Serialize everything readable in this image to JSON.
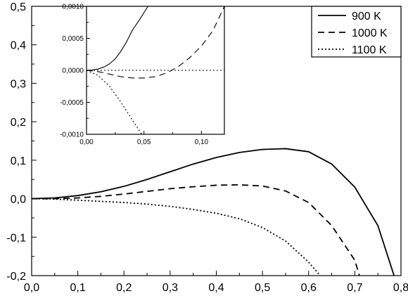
{
  "chart_data": [
    {
      "type": "line",
      "title": "",
      "xlabel": "",
      "ylabel": "",
      "xlim": [
        0.0,
        0.8
      ],
      "ylim": [
        -0.2,
        0.5
      ],
      "xticks": [
        "0,0",
        "0,1",
        "0,2",
        "0,3",
        "0,4",
        "0,5",
        "0,6",
        "0,7",
        "0,8"
      ],
      "yticks": [
        "0,5",
        "0,4",
        "0,3",
        "0,2",
        "0,1",
        "0,0",
        "-0,1",
        "-0,2"
      ],
      "grid": false,
      "legend_position": "top-right",
      "series": [
        {
          "name": "900 K",
          "style": "solid",
          "x": [
            0,
            0.05,
            0.1,
            0.15,
            0.2,
            0.25,
            0.3,
            0.35,
            0.4,
            0.45,
            0.5,
            0.55,
            0.6,
            0.65,
            0.7,
            0.75,
            0.785
          ],
          "y": [
            0,
            0.002,
            0.008,
            0.018,
            0.032,
            0.05,
            0.07,
            0.09,
            0.107,
            0.12,
            0.128,
            0.13,
            0.122,
            0.09,
            0.03,
            -0.07,
            -0.2
          ]
        },
        {
          "name": "1000 K",
          "style": "dashed",
          "x": [
            0,
            0.05,
            0.1,
            0.15,
            0.2,
            0.25,
            0.3,
            0.35,
            0.4,
            0.45,
            0.5,
            0.55,
            0.6,
            0.65,
            0.7,
            0.71
          ],
          "y": [
            0,
            0.0,
            0.002,
            0.006,
            0.012,
            0.019,
            0.026,
            0.031,
            0.035,
            0.036,
            0.033,
            0.02,
            -0.01,
            -0.07,
            -0.16,
            -0.2
          ]
        },
        {
          "name": "1100 K",
          "style": "dotted",
          "x": [
            0,
            0.05,
            0.1,
            0.15,
            0.2,
            0.25,
            0.3,
            0.35,
            0.4,
            0.45,
            0.5,
            0.55,
            0.6,
            0.625
          ],
          "y": [
            0,
            -0.001,
            -0.004,
            -0.007,
            -0.01,
            -0.014,
            -0.02,
            -0.028,
            -0.038,
            -0.052,
            -0.075,
            -0.11,
            -0.165,
            -0.2
          ]
        }
      ]
    },
    {
      "type": "line",
      "title": "",
      "xlabel": "",
      "ylabel": "",
      "xlim": [
        0.0,
        0.12
      ],
      "ylim": [
        -0.001,
        0.001
      ],
      "xticks": [
        "0,00",
        "0,05",
        "0,10"
      ],
      "yticks": [
        "0,0010",
        "0,0005",
        "0,0000",
        "-0,0005",
        "-0,0010"
      ],
      "grid": false,
      "series": [
        {
          "style": "solid",
          "x": [
            0,
            0.005,
            0.01,
            0.015,
            0.02,
            0.025,
            0.03,
            0.035,
            0.04,
            0.045,
            0.0535
          ],
          "y": [
            0,
            5e-06,
            2e-05,
            5e-05,
            0.0001,
            0.00018,
            0.0003,
            0.00045,
            0.00063,
            0.00076,
            0.001
          ]
        },
        {
          "style": "dashed",
          "x": [
            0,
            0.01,
            0.02,
            0.03,
            0.04,
            0.05,
            0.06,
            0.07,
            0.08,
            0.09,
            0.1,
            0.11,
            0.12
          ],
          "y": [
            0,
            -2e-05,
            -6e-05,
            -0.0001,
            -0.00012,
            -0.00012,
            -0.0001,
            -4e-05,
            6e-05,
            0.0002,
            0.00038,
            0.00062,
            0.001
          ]
        },
        {
          "style": "dotted",
          "x": [
            0,
            0.02,
            0.04,
            0.06,
            0.08,
            0.1,
            0.12
          ],
          "y": [
            0,
            0,
            0,
            0,
            0,
            0,
            0
          ]
        },
        {
          "style": "dotted",
          "x": [
            0,
            0.01,
            0.02,
            0.03,
            0.04,
            0.048
          ],
          "y": [
            0,
            -8e-05,
            -0.00025,
            -0.0005,
            -0.00078,
            -0.001
          ]
        }
      ]
    }
  ]
}
